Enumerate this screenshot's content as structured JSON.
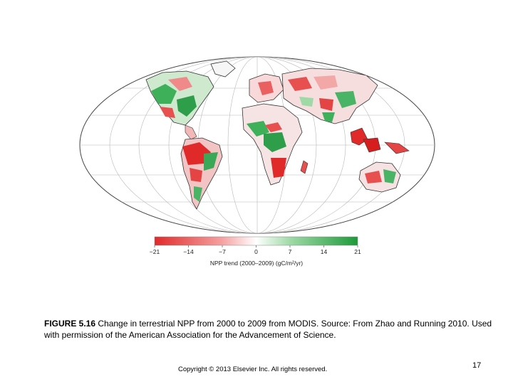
{
  "figure": {
    "colorbar": {
      "ticks": [
        "−21",
        "−14",
        "−7",
        "0",
        "7",
        "14",
        "21"
      ],
      "tick_values": [
        -21,
        -14,
        -7,
        0,
        7,
        14,
        21
      ],
      "label": "NPP trend (2000–2009) (gC/m²/yr)",
      "colors": {
        "negative": "#e02a2a",
        "neutral": "#ffffff",
        "positive": "#1e9a3a"
      }
    }
  },
  "caption": {
    "prefix": "FIGURE 5.16",
    "text": " Change in terrestrial NPP from 2000 to 2009 from MODIS. Source: From Zhao and Running 2010. Used with permission of the American Association for the Advancement of Science."
  },
  "footer": {
    "copyright": "Copyright © 2013 Elsevier Inc. All rights reserved.",
    "page_number": "17"
  }
}
